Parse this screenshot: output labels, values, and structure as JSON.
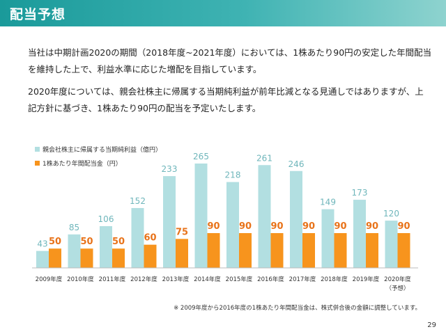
{
  "header": {
    "title": "配当予想"
  },
  "body": {
    "paragraph1": "当社は中期計画2020の期間（2018年度~2021年度）においては、1株あたり90円の安定した年間配当を維持した上で、利益水準に応じた増配を目指しています。",
    "paragraph2": "2020年度については、親会社株主に帰属する当期純利益が前年比減となる見通しではありますが、上記方針に基づき、1株あたり90円の配当を予定いたします。"
  },
  "chart_data": {
    "type": "bar",
    "categories": [
      "2009年度",
      "2010年度",
      "2011年度",
      "2012年度",
      "2013年度",
      "2014年度",
      "2015年度",
      "2016年度",
      "2017年度",
      "2018年度",
      "2019年度",
      "2020年度"
    ],
    "category_notes": [
      "",
      "",
      "",
      "",
      "",
      "",
      "",
      "",
      "",
      "",
      "",
      "（予想）"
    ],
    "series": [
      {
        "name": "親会社株主に帰属する当期純利益（億円）",
        "values": [
          43,
          85,
          106,
          152,
          233,
          265,
          218,
          261,
          246,
          149,
          173,
          120
        ],
        "color": "#b2dfe1",
        "label_color": "#6fb6bb"
      },
      {
        "name": "1株あたり年間配当金（円）",
        "values": [
          50,
          50,
          50,
          60,
          75,
          90,
          90,
          90,
          90,
          90,
          90,
          90
        ],
        "color": "#f7941d",
        "label_color": "#e8731a"
      }
    ],
    "legend_position": "top-left",
    "grid": false
  },
  "footnote": "※ 2009年度から2016年度の1株あたり年間配当金は、株式併合後の金額に調整しています。",
  "page_number": "29"
}
